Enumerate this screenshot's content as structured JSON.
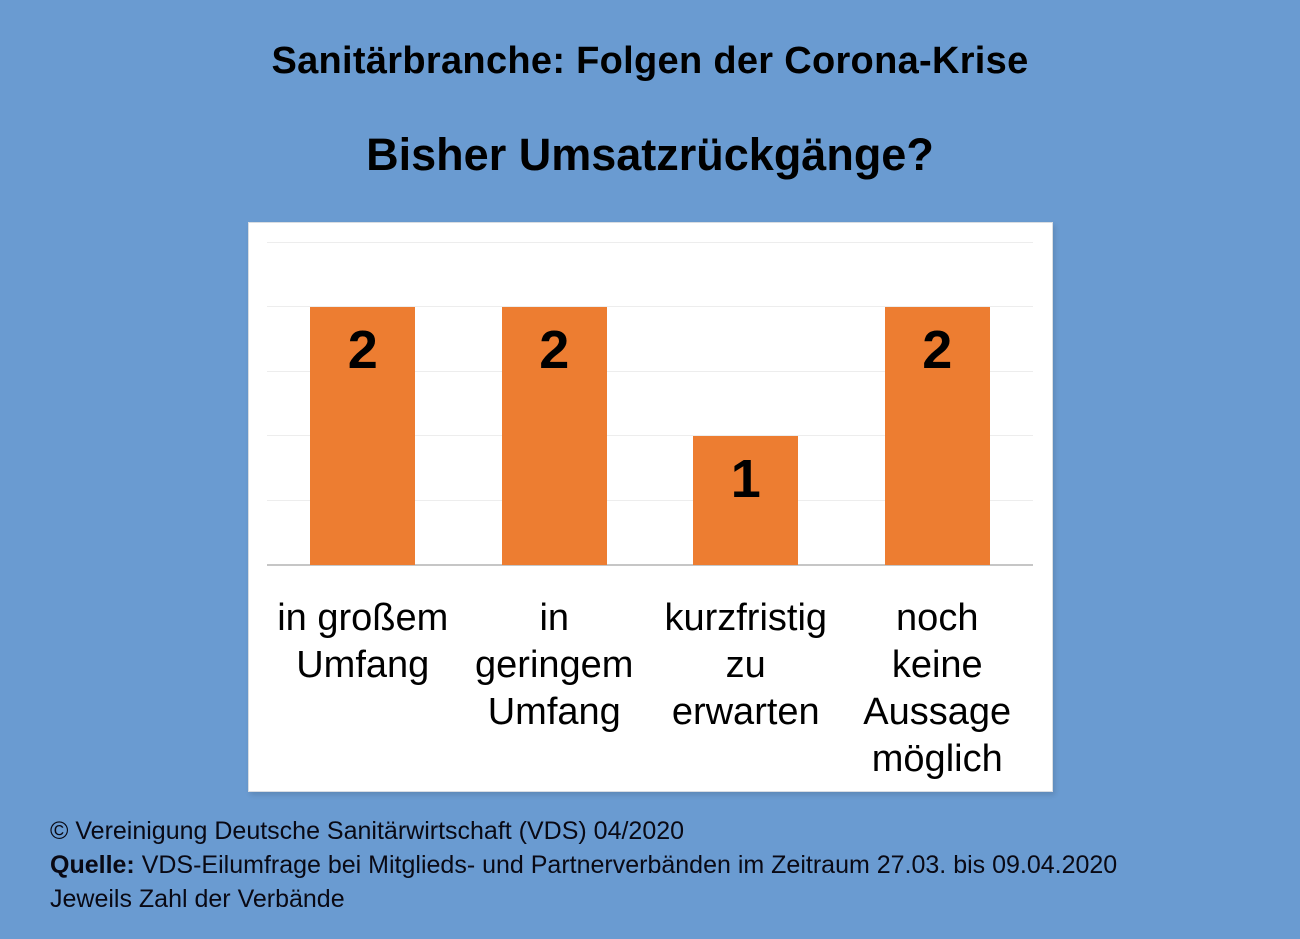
{
  "slide": {
    "title": "Sanitärbranche: Folgen der Corona-Krise",
    "subtitle": "Bisher Umsatzrückgänge?",
    "background_color": "#6A9BD1"
  },
  "chart_data": {
    "type": "bar",
    "title": "",
    "categories": [
      "in großem\nUmfang",
      "in\ngeringem\nUmfang",
      "kurzfristig\nzu\nerwarten",
      "noch\nkeine\nAussage\nmöglich"
    ],
    "values": [
      2,
      2,
      1,
      2
    ],
    "data_labels": [
      "2",
      "2",
      "1",
      "2"
    ],
    "xlabel": "",
    "ylabel": "",
    "ylim": [
      0,
      2.5
    ],
    "gridline_step": 0.5,
    "grid": true,
    "legend": "none",
    "y_tick_labels_visible": false,
    "bar_color": "#ED7D31",
    "panel_color": "#FFFFFF",
    "gridline_color": "#EDEDED",
    "axis_line_color": "#C6C6C6",
    "value_label_position": "inside-top"
  },
  "footer": {
    "copyright": "© Vereinigung Deutsche Sanitärwirtschaft (VDS) 04/2020",
    "source_label": "Quelle:",
    "source_text": "VDS-Eilumfrage bei Mitglieds- und Partnerverbänden im Zeitraum 27.03. bis 09.04.2020",
    "note": "Jeweils Zahl der Verbände"
  }
}
